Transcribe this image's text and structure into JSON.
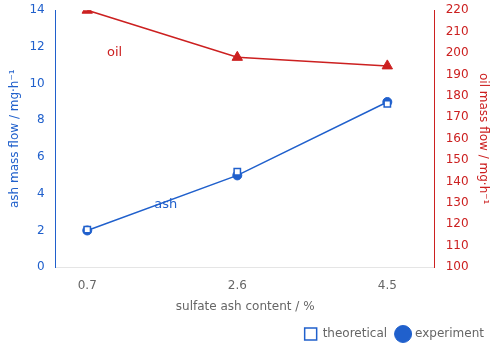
{
  "chart_data": {
    "type": "line",
    "xlabel": "sulfate ash content / %",
    "ylabel": "ash mass flow / mg·h⁻¹",
    "y2label": "oil mass flow / mg·h⁻¹",
    "x": [
      0.7,
      2.6,
      4.5
    ],
    "series": [
      {
        "name": "experiment",
        "color": "#2060CC",
        "values": [
          2.0,
          5.0,
          9.0
        ],
        "marker": "circle",
        "line_style": "solid"
      },
      {
        "name": "theoretical",
        "color": "#2060CC",
        "values": [
          2.05,
          5.2,
          8.9
        ],
        "marker": "square",
        "line_style": "none"
      },
      {
        "color": "#CC2020",
        "values": [
          220,
          198,
          194
        ],
        "axis": "y2",
        "marker": "triangle",
        "line_style": "solid"
      }
    ],
    "xlim": [
      0.3,
      5.1
    ],
    "xticks": [
      0.7,
      2.6,
      4.5
    ],
    "ylim": [
      0,
      14
    ],
    "yticks": [
      0,
      2,
      4,
      6,
      8,
      10,
      12,
      14
    ],
    "y2lim": [
      100,
      220
    ],
    "y2ticks": [
      100,
      110,
      120,
      130,
      140,
      150,
      160,
      170,
      180,
      190,
      200,
      210,
      220
    ],
    "ycolor": "#2060CC",
    "y2color": "#CC2020",
    "annotations": [
      {
        "text": "ash",
        "x": 1.55,
        "y": 3.2,
        "color": "#2060CC"
      },
      {
        "text": "oil",
        "x": 0.95,
        "y": 11.5,
        "color": "#CC2020"
      }
    ],
    "legend": "lower right",
    "grid": false
  }
}
